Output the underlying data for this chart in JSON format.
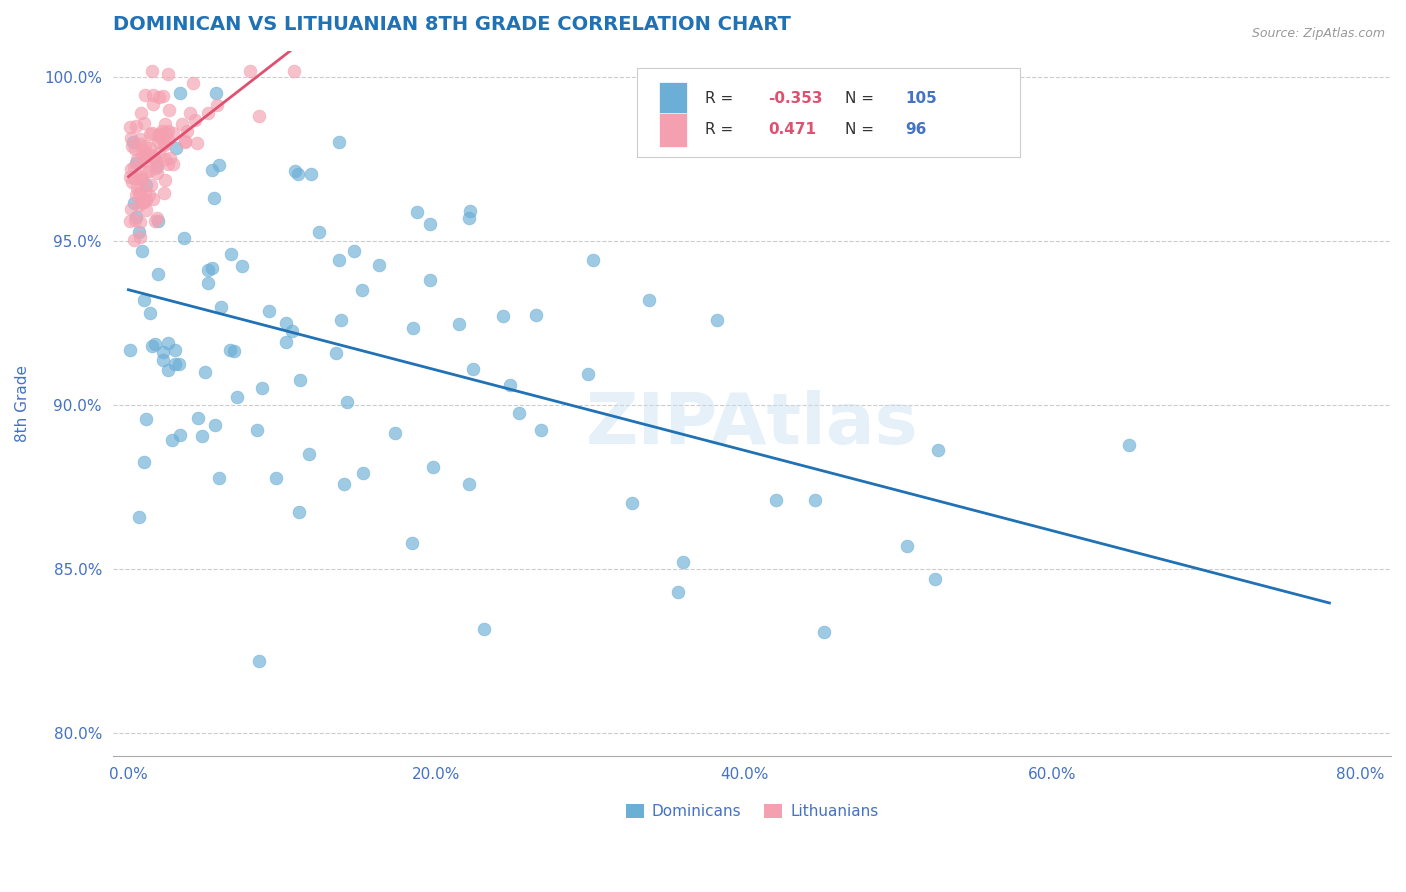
{
  "title": "DOMINICAN VS LITHUANIAN 8TH GRADE CORRELATION CHART",
  "source_text": "Source: ZipAtlas.com",
  "ylabel": "8th Grade",
  "xlim": [
    -0.01,
    0.82
  ],
  "ylim": [
    0.793,
    1.008
  ],
  "xticks": [
    0.0,
    0.2,
    0.4,
    0.6,
    0.8
  ],
  "yticks": [
    0.8,
    0.85,
    0.9,
    0.95,
    1.0
  ],
  "blue_color": "#6baed6",
  "pink_color": "#f4a0b0",
  "blue_line_color": "#2171b5",
  "pink_line_color": "#e05070",
  "title_color": "#2171b5",
  "axis_color": "#4472c4",
  "blue_R": -0.353,
  "blue_N": 105,
  "pink_R": 0.471,
  "pink_N": 96,
  "watermark": "ZIPAtlas"
}
